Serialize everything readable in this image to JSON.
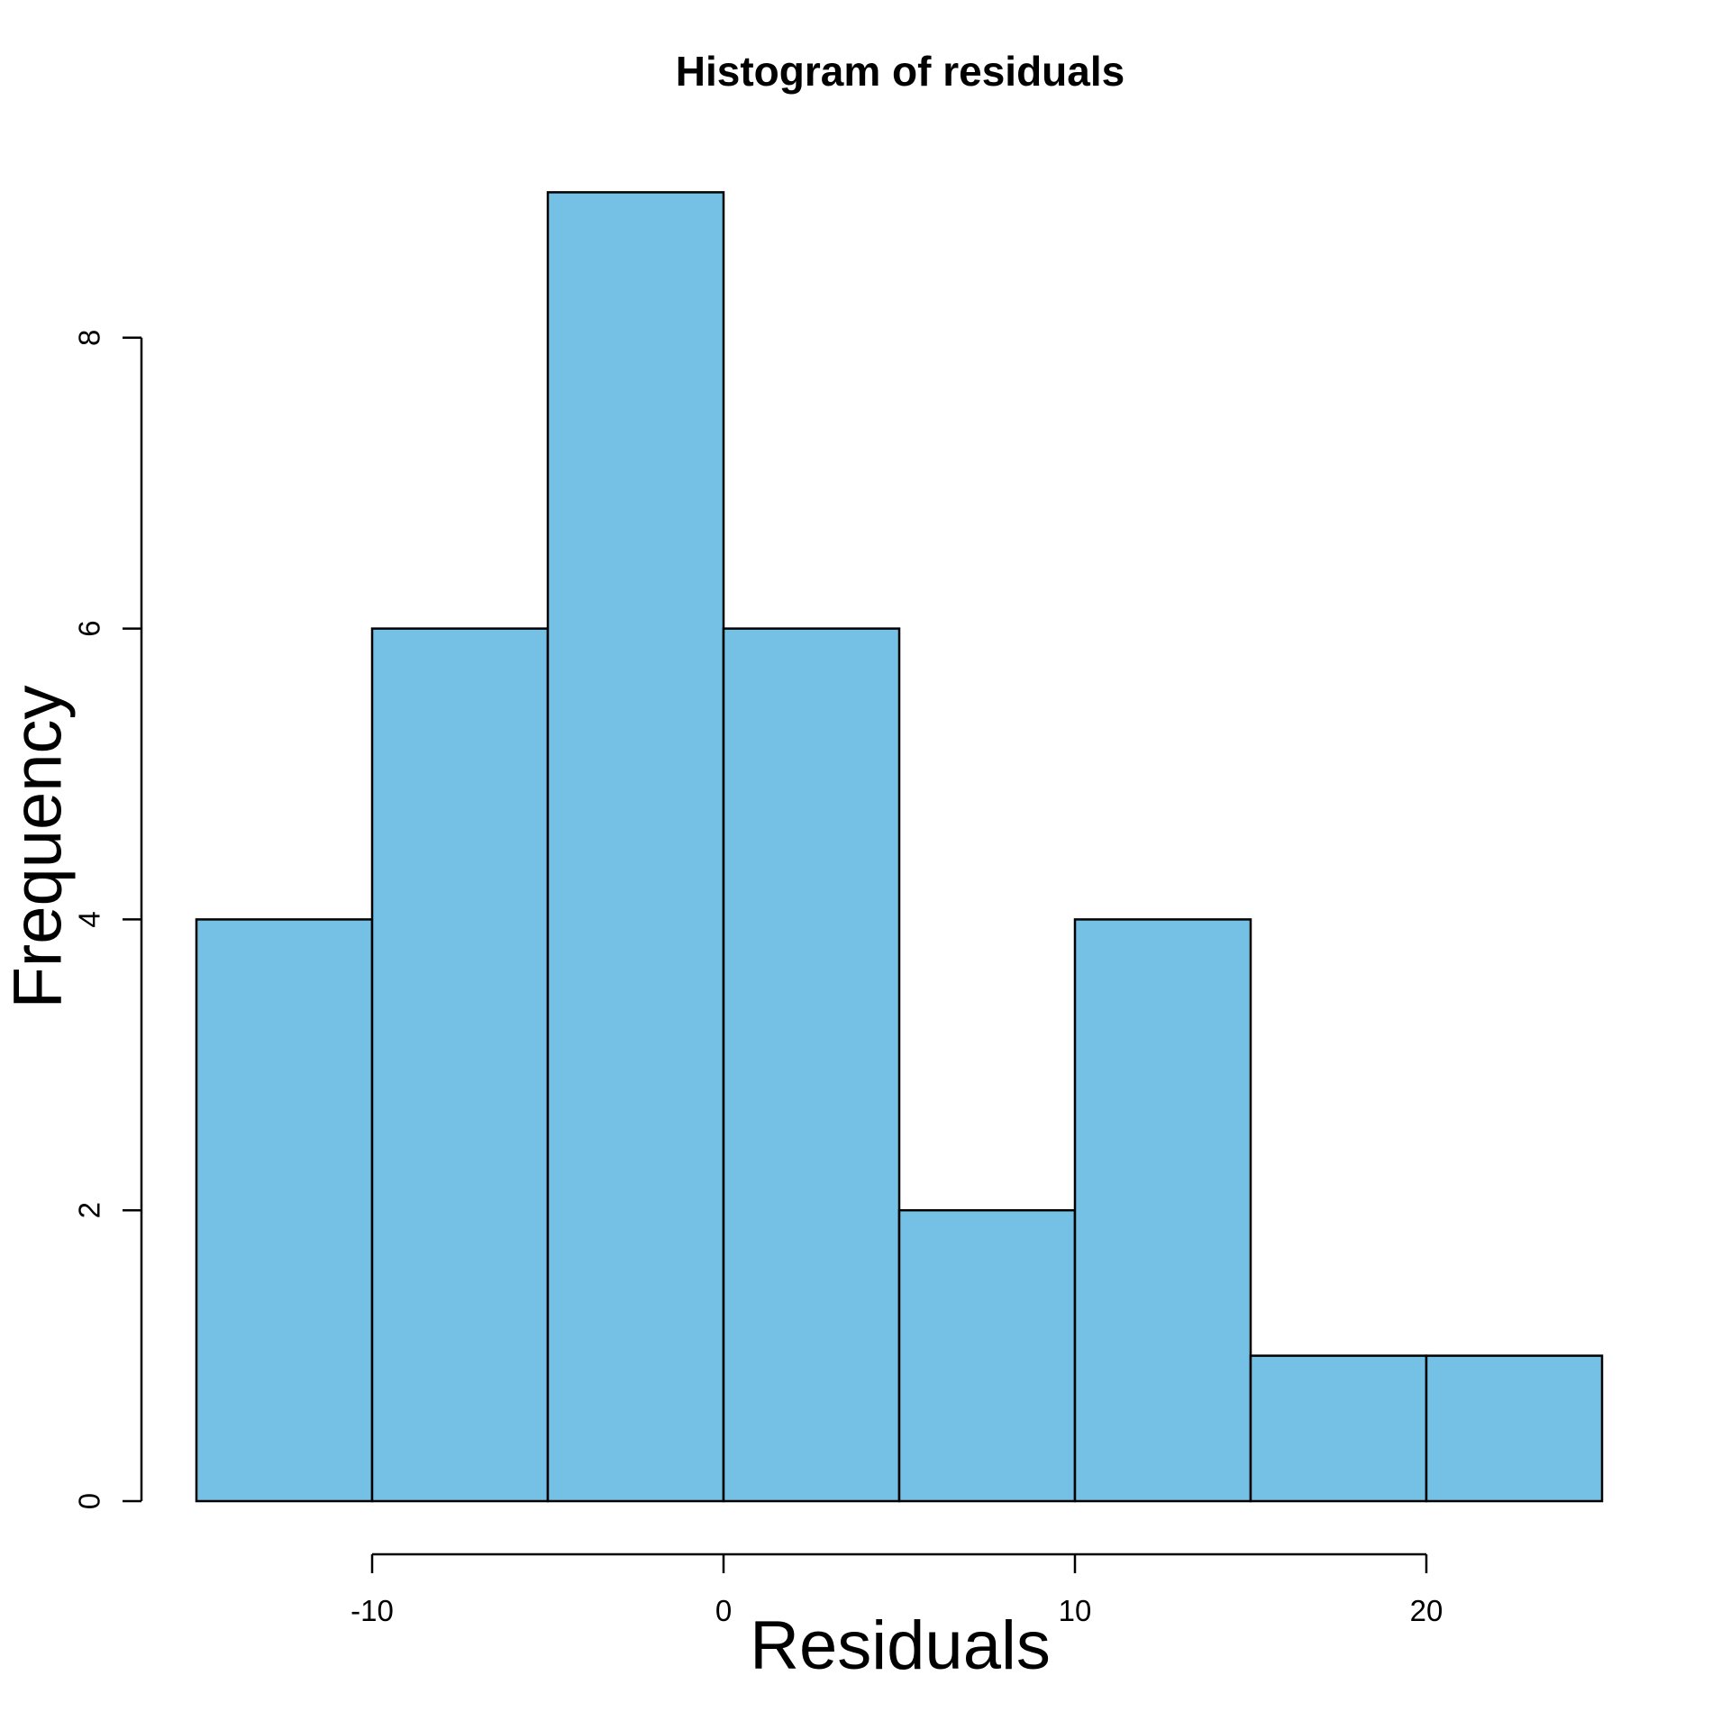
{
  "chart_data": {
    "type": "bar",
    "subtype": "histogram",
    "title": "Histogram of residuals",
    "xlabel": "Residuals",
    "ylabel": "Frequency",
    "bin_breaks": [
      -15,
      -10,
      -5,
      0,
      5,
      10,
      15,
      20,
      25
    ],
    "bin_width": 5,
    "counts": [
      4,
      6,
      9,
      6,
      2,
      4,
      1,
      1
    ],
    "x_ticks": [
      -10,
      0,
      10,
      20
    ],
    "y_ticks": [
      0,
      2,
      4,
      6,
      8
    ],
    "xlim": [
      -15,
      25
    ],
    "ylim": [
      0,
      9
    ],
    "grid": false,
    "legend": "none",
    "bar_fill_color": "#74C1E5",
    "bar_border_color": "#000000",
    "axis_color": "#000000",
    "background_color": "#ffffff"
  }
}
